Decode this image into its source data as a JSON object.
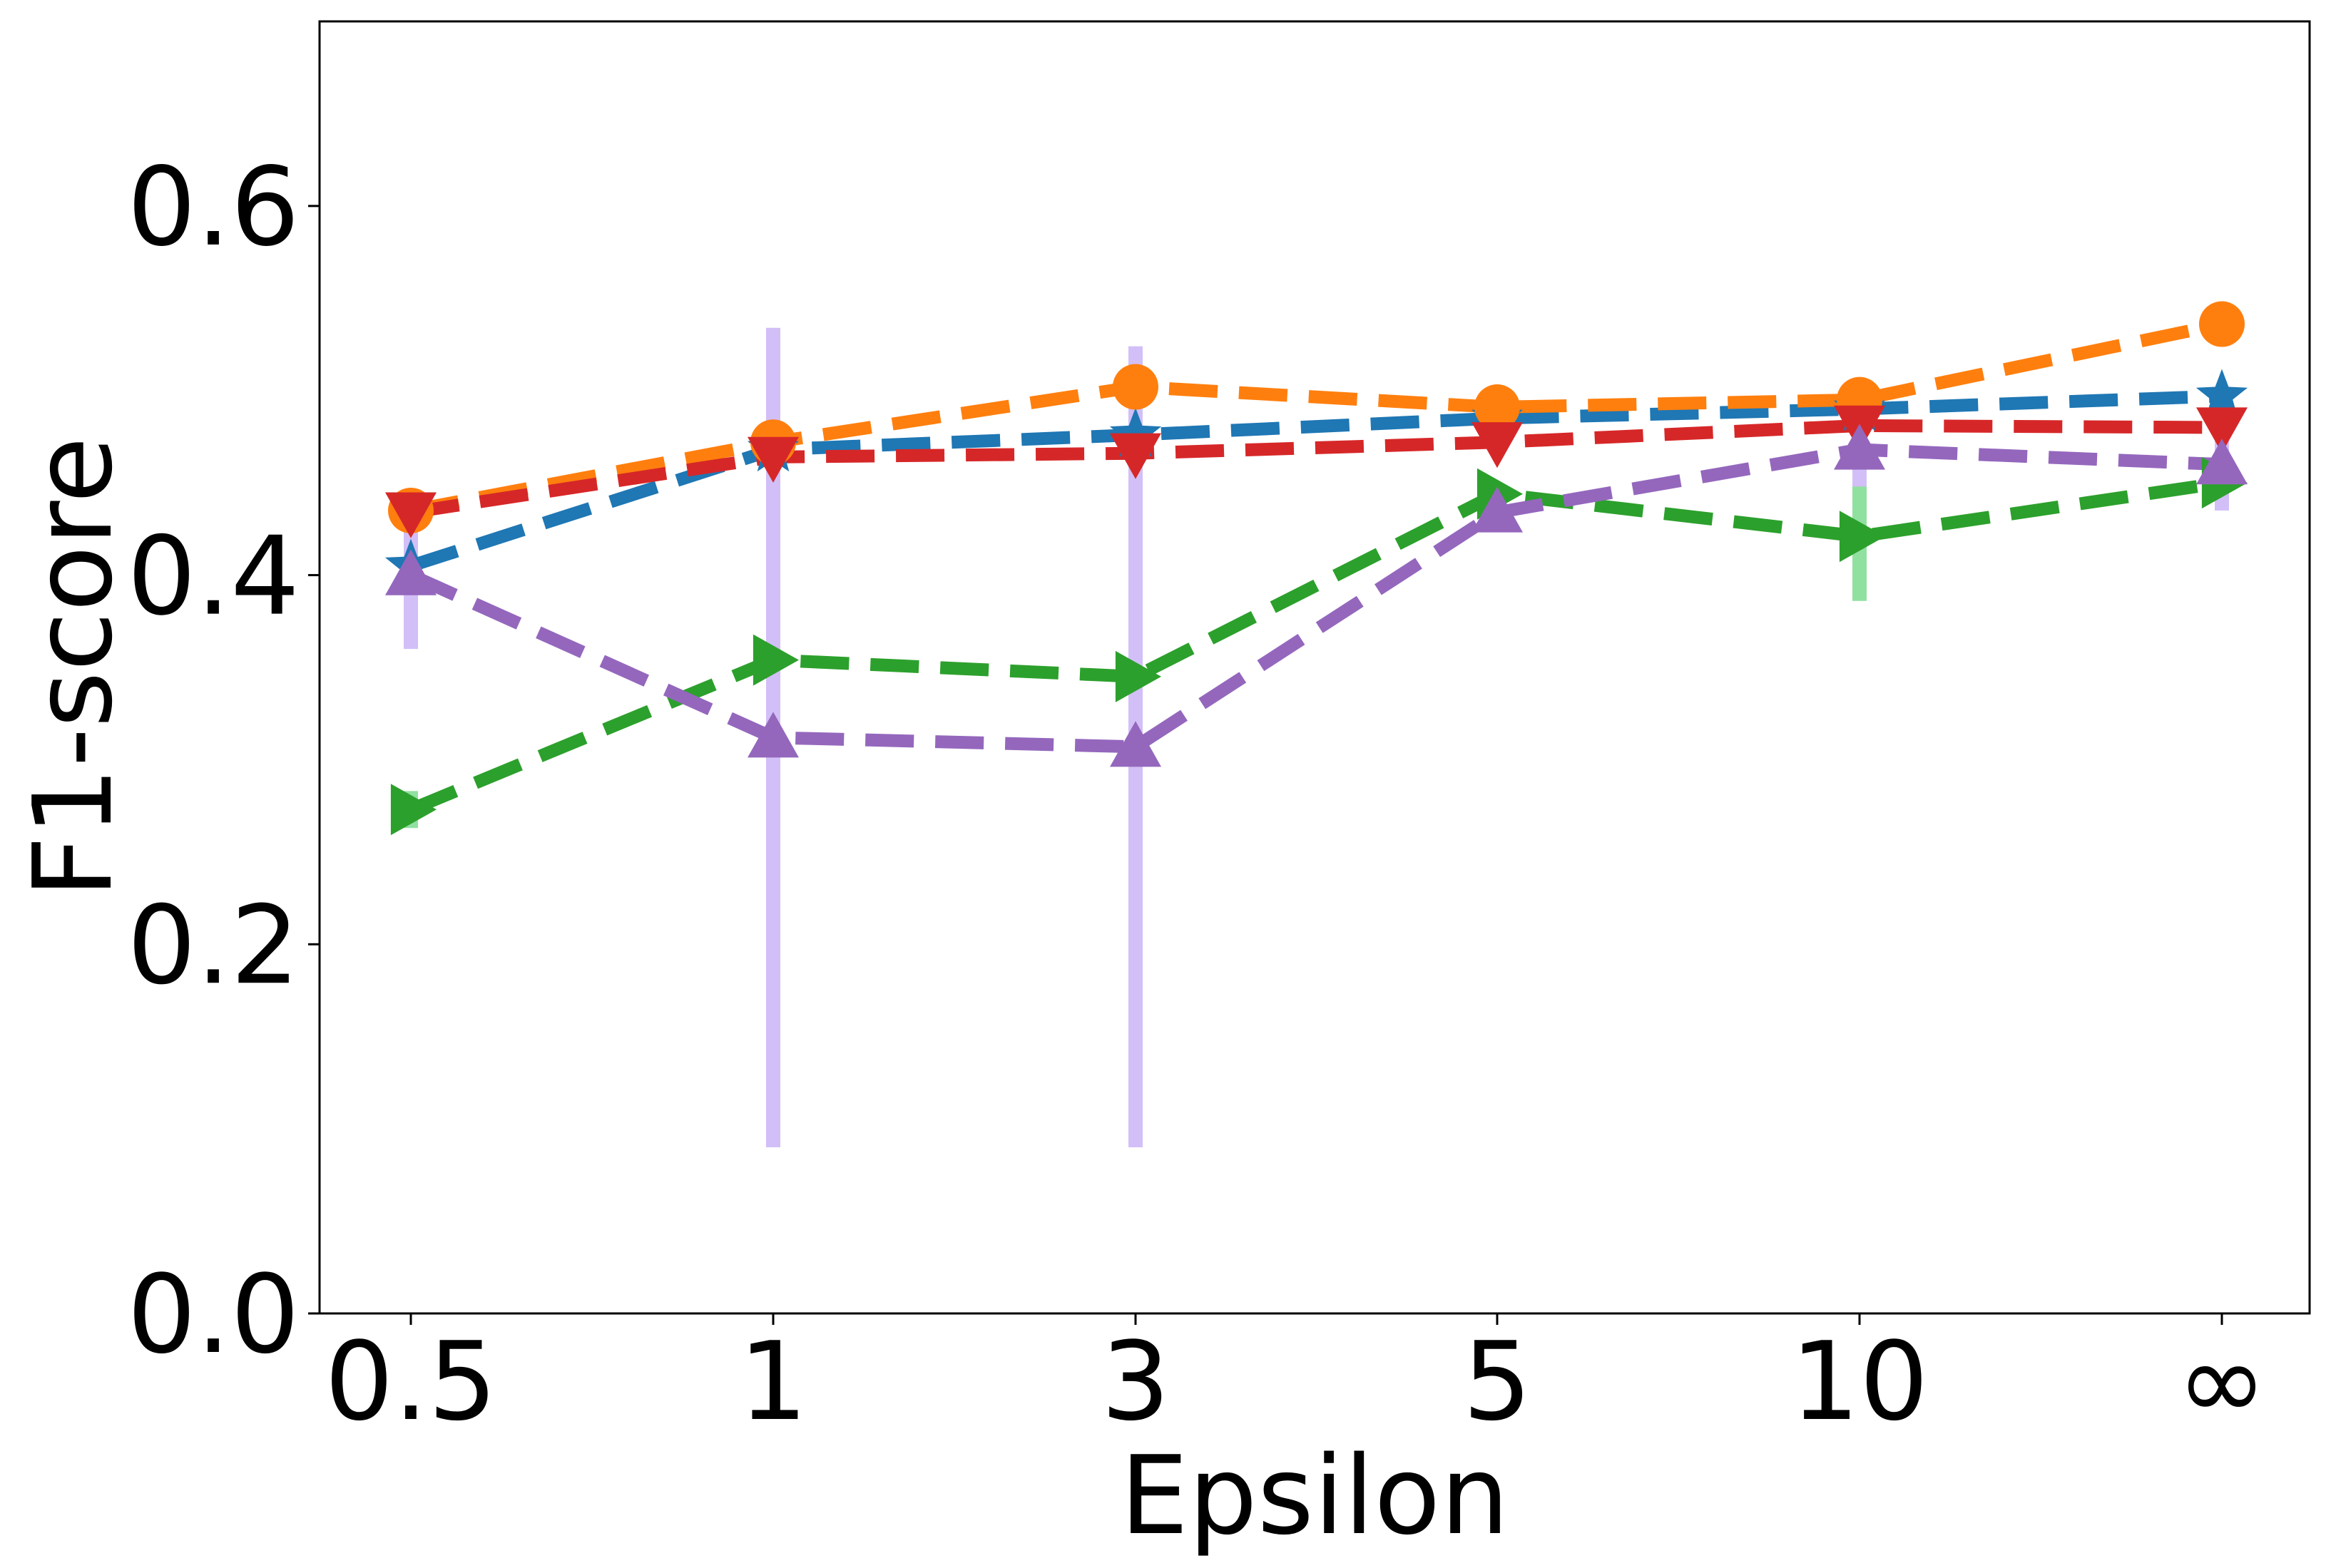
{
  "chart_data": {
    "type": "line",
    "title": "",
    "xlabel": "Epsilon",
    "ylabel": "F1-score",
    "categories": [
      "0.5",
      "1",
      "3",
      "5",
      "10",
      "∞"
    ],
    "yticks": [
      "0.0",
      "0.2",
      "0.4",
      "0.6"
    ],
    "ylim": [
      0,
      0.7
    ],
    "grid": false,
    "legend": "none",
    "series": [
      {
        "name": "blue-star-series",
        "color": "#1f77b4",
        "marker": "star",
        "values": [
          0.405,
          0.468,
          0.476,
          0.485,
          0.49,
          0.497
        ],
        "errors": [
          0,
          0,
          0,
          0,
          0,
          0
        ]
      },
      {
        "name": "orange-circle-series",
        "color": "#ff7f0e",
        "marker": "circle",
        "values": [
          0.435,
          0.472,
          0.502,
          0.491,
          0.495,
          0.536
        ],
        "errors": [
          0,
          0,
          0,
          0,
          0,
          0
        ]
      },
      {
        "name": "green-triangle-right-series",
        "color": "#2ca02c",
        "errorColor": "#90e0a0",
        "marker": "triangle-right",
        "values": [
          0.273,
          0.354,
          0.345,
          0.444,
          0.421,
          0.45
        ],
        "errors": [
          0.01,
          0,
          0,
          0,
          0.035,
          0
        ]
      },
      {
        "name": "red-triangle-down-series",
        "color": "#d62728",
        "marker": "triangle-down",
        "values": [
          0.434,
          0.464,
          0.466,
          0.472,
          0.481,
          0.48
        ],
        "errors": [
          0,
          0,
          0,
          0,
          0,
          0
        ]
      },
      {
        "name": "purple-triangle-up-series",
        "color": "#9467bd",
        "errorColor": "#d2bff7",
        "marker": "triangle-up",
        "values": [
          0.4,
          0.312,
          0.307,
          0.434,
          0.468,
          0.46
        ],
        "errors": [
          0.04,
          0.222,
          0.217,
          0,
          0.02,
          0.025
        ]
      }
    ]
  }
}
